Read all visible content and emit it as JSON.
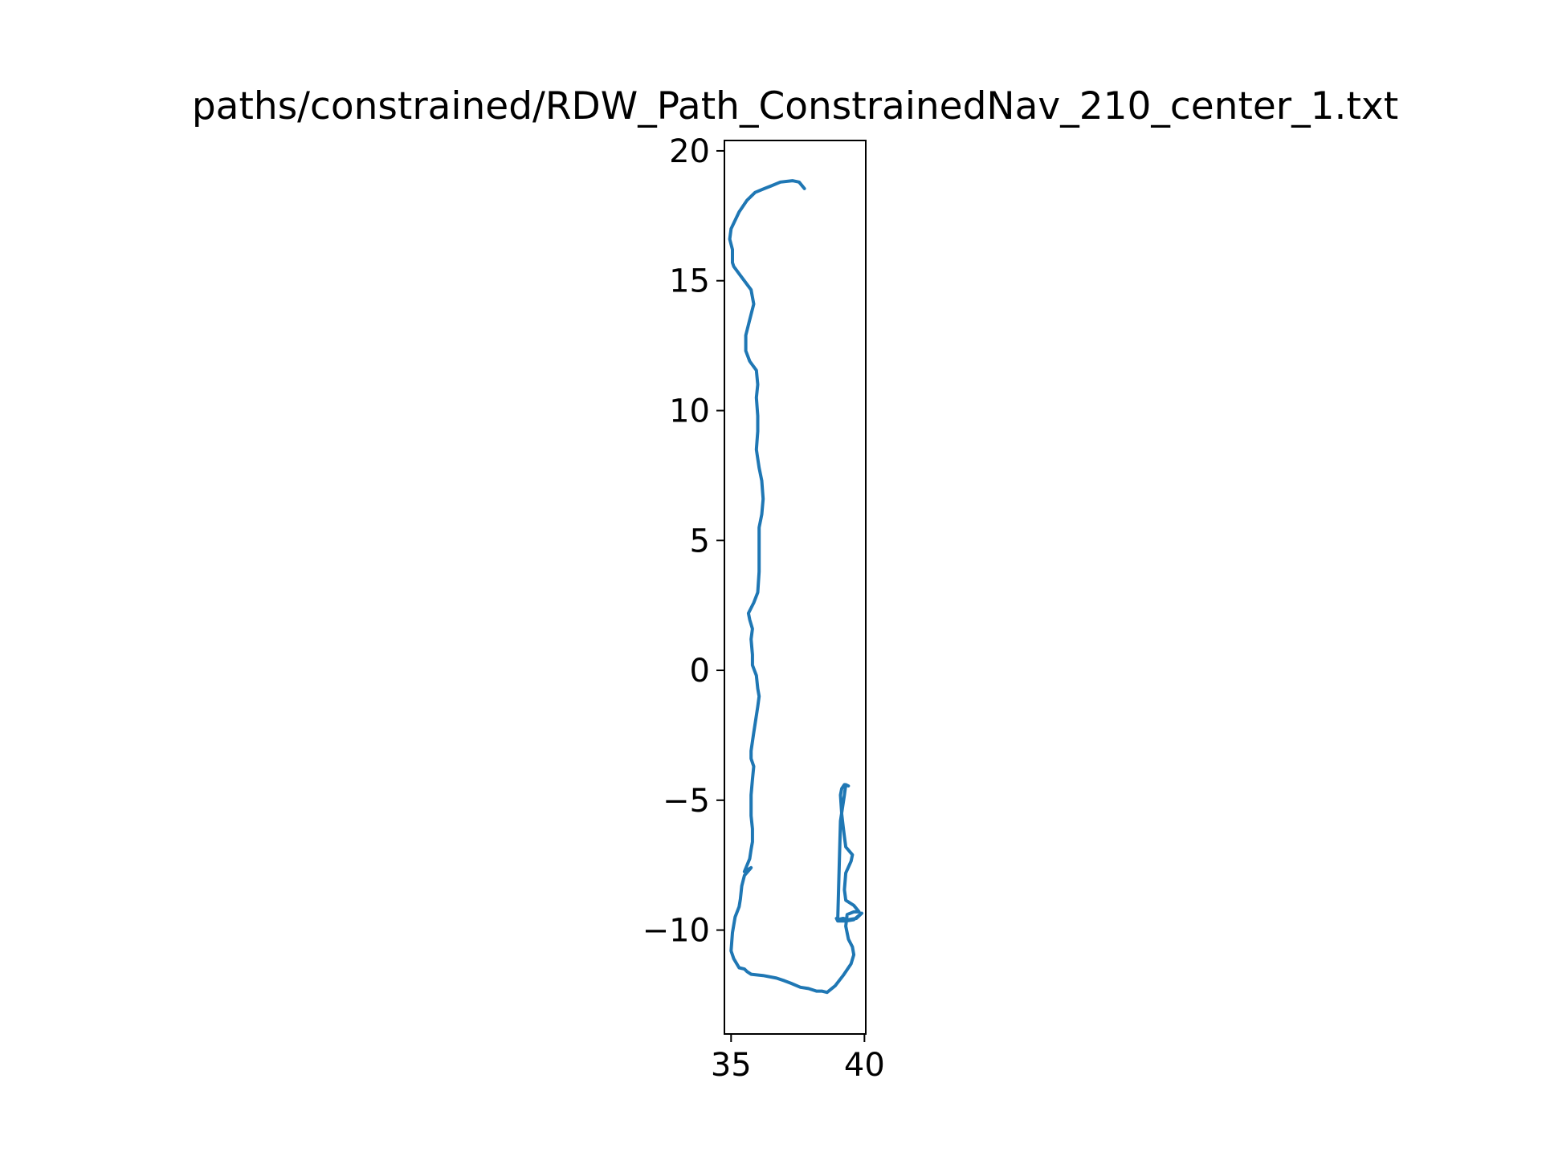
{
  "chart_data": {
    "type": "line",
    "title": "paths/constrained/RDW_Path_ConstrainedNav_210_center_1.txt",
    "xlabel": "",
    "ylabel": "",
    "xlim": [
      34.75,
      40.05
    ],
    "ylim": [
      -14.0,
      20.4
    ],
    "xticks": [
      35,
      40
    ],
    "xtick_labels": [
      "35",
      "40"
    ],
    "yticks": [
      20,
      15,
      10,
      5,
      0,
      -5,
      -10
    ],
    "ytick_labels": [
      "20",
      "15",
      "10",
      "5",
      "0",
      "−5",
      "−10"
    ],
    "grid": false,
    "legend": "none",
    "color": "#1f77b4",
    "series": [
      {
        "x": [
          37.75,
          37.55,
          37.3,
          36.85,
          36.5,
          36.25,
          35.9,
          35.6,
          35.3,
          35.0,
          34.95,
          35.05,
          35.05,
          35.1,
          35.35,
          35.75,
          35.85,
          35.7,
          35.55,
          35.55,
          35.7,
          35.95,
          36.0,
          35.95,
          36.0,
          36.0,
          35.95,
          36.05,
          36.15,
          36.2,
          36.15,
          36.05,
          36.05,
          36.05,
          36.0,
          35.85,
          35.65,
          35.7,
          35.8,
          35.75,
          35.8,
          35.8,
          35.95,
          36.0,
          36.05,
          36.0,
          35.85,
          35.75,
          35.75,
          35.85,
          35.8,
          35.75,
          35.75,
          35.8,
          35.8,
          35.75,
          35.7,
          35.5,
          35.75,
          35.5,
          35.4,
          35.35,
          35.3,
          35.15,
          35.05,
          35.0,
          35.1,
          35.3,
          35.5,
          35.6,
          35.75,
          36.2,
          36.7,
          37.0,
          37.25,
          37.6,
          37.9,
          38.2,
          38.4,
          38.6,
          38.9,
          39.2,
          39.5,
          39.6,
          39.55,
          39.4,
          39.3,
          39.35,
          39.6,
          39.8,
          39.6,
          39.3,
          39.25,
          39.3,
          39.5,
          39.55,
          39.3,
          39.25,
          39.2,
          39.15,
          39.1,
          39.15,
          39.25,
          39.4,
          39.3,
          39.25,
          39.1,
          39.0,
          39.2,
          39.4,
          39.7,
          39.9,
          39.6,
          39.3,
          39.0,
          38.95
        ],
        "y": [
          18.55,
          18.8,
          18.85,
          18.8,
          18.65,
          18.55,
          18.4,
          18.1,
          17.65,
          17.0,
          16.6,
          16.2,
          15.7,
          15.55,
          15.2,
          14.65,
          14.1,
          13.5,
          12.9,
          12.3,
          11.9,
          11.55,
          11.0,
          10.5,
          9.8,
          9.2,
          8.5,
          7.8,
          7.3,
          6.6,
          6.0,
          5.5,
          4.8,
          3.8,
          3.0,
          2.6,
          2.2,
          1.95,
          1.6,
          1.2,
          0.6,
          0.2,
          -0.2,
          -0.7,
          -1.0,
          -1.4,
          -2.4,
          -3.1,
          -3.4,
          -3.7,
          -4.2,
          -4.8,
          -5.6,
          -6.1,
          -6.6,
          -6.9,
          -7.25,
          -7.75,
          -7.6,
          -7.9,
          -8.3,
          -8.8,
          -9.1,
          -9.5,
          -10.1,
          -10.8,
          -11.1,
          -11.45,
          -11.5,
          -11.6,
          -11.7,
          -11.75,
          -11.85,
          -11.95,
          -12.05,
          -12.2,
          -12.25,
          -12.35,
          -12.35,
          -12.4,
          -12.15,
          -11.75,
          -11.3,
          -10.95,
          -10.65,
          -10.35,
          -9.85,
          -9.4,
          -9.3,
          -9.3,
          -9.05,
          -8.85,
          -8.45,
          -7.8,
          -7.35,
          -7.1,
          -6.8,
          -6.4,
          -6.0,
          -5.55,
          -4.8,
          -4.55,
          -4.4,
          -4.45,
          -4.4,
          -4.8,
          -5.8,
          -9.6,
          -9.55,
          -9.6,
          -9.55,
          -9.35,
          -9.6,
          -9.65,
          -9.65,
          -9.55
        ]
      }
    ]
  }
}
